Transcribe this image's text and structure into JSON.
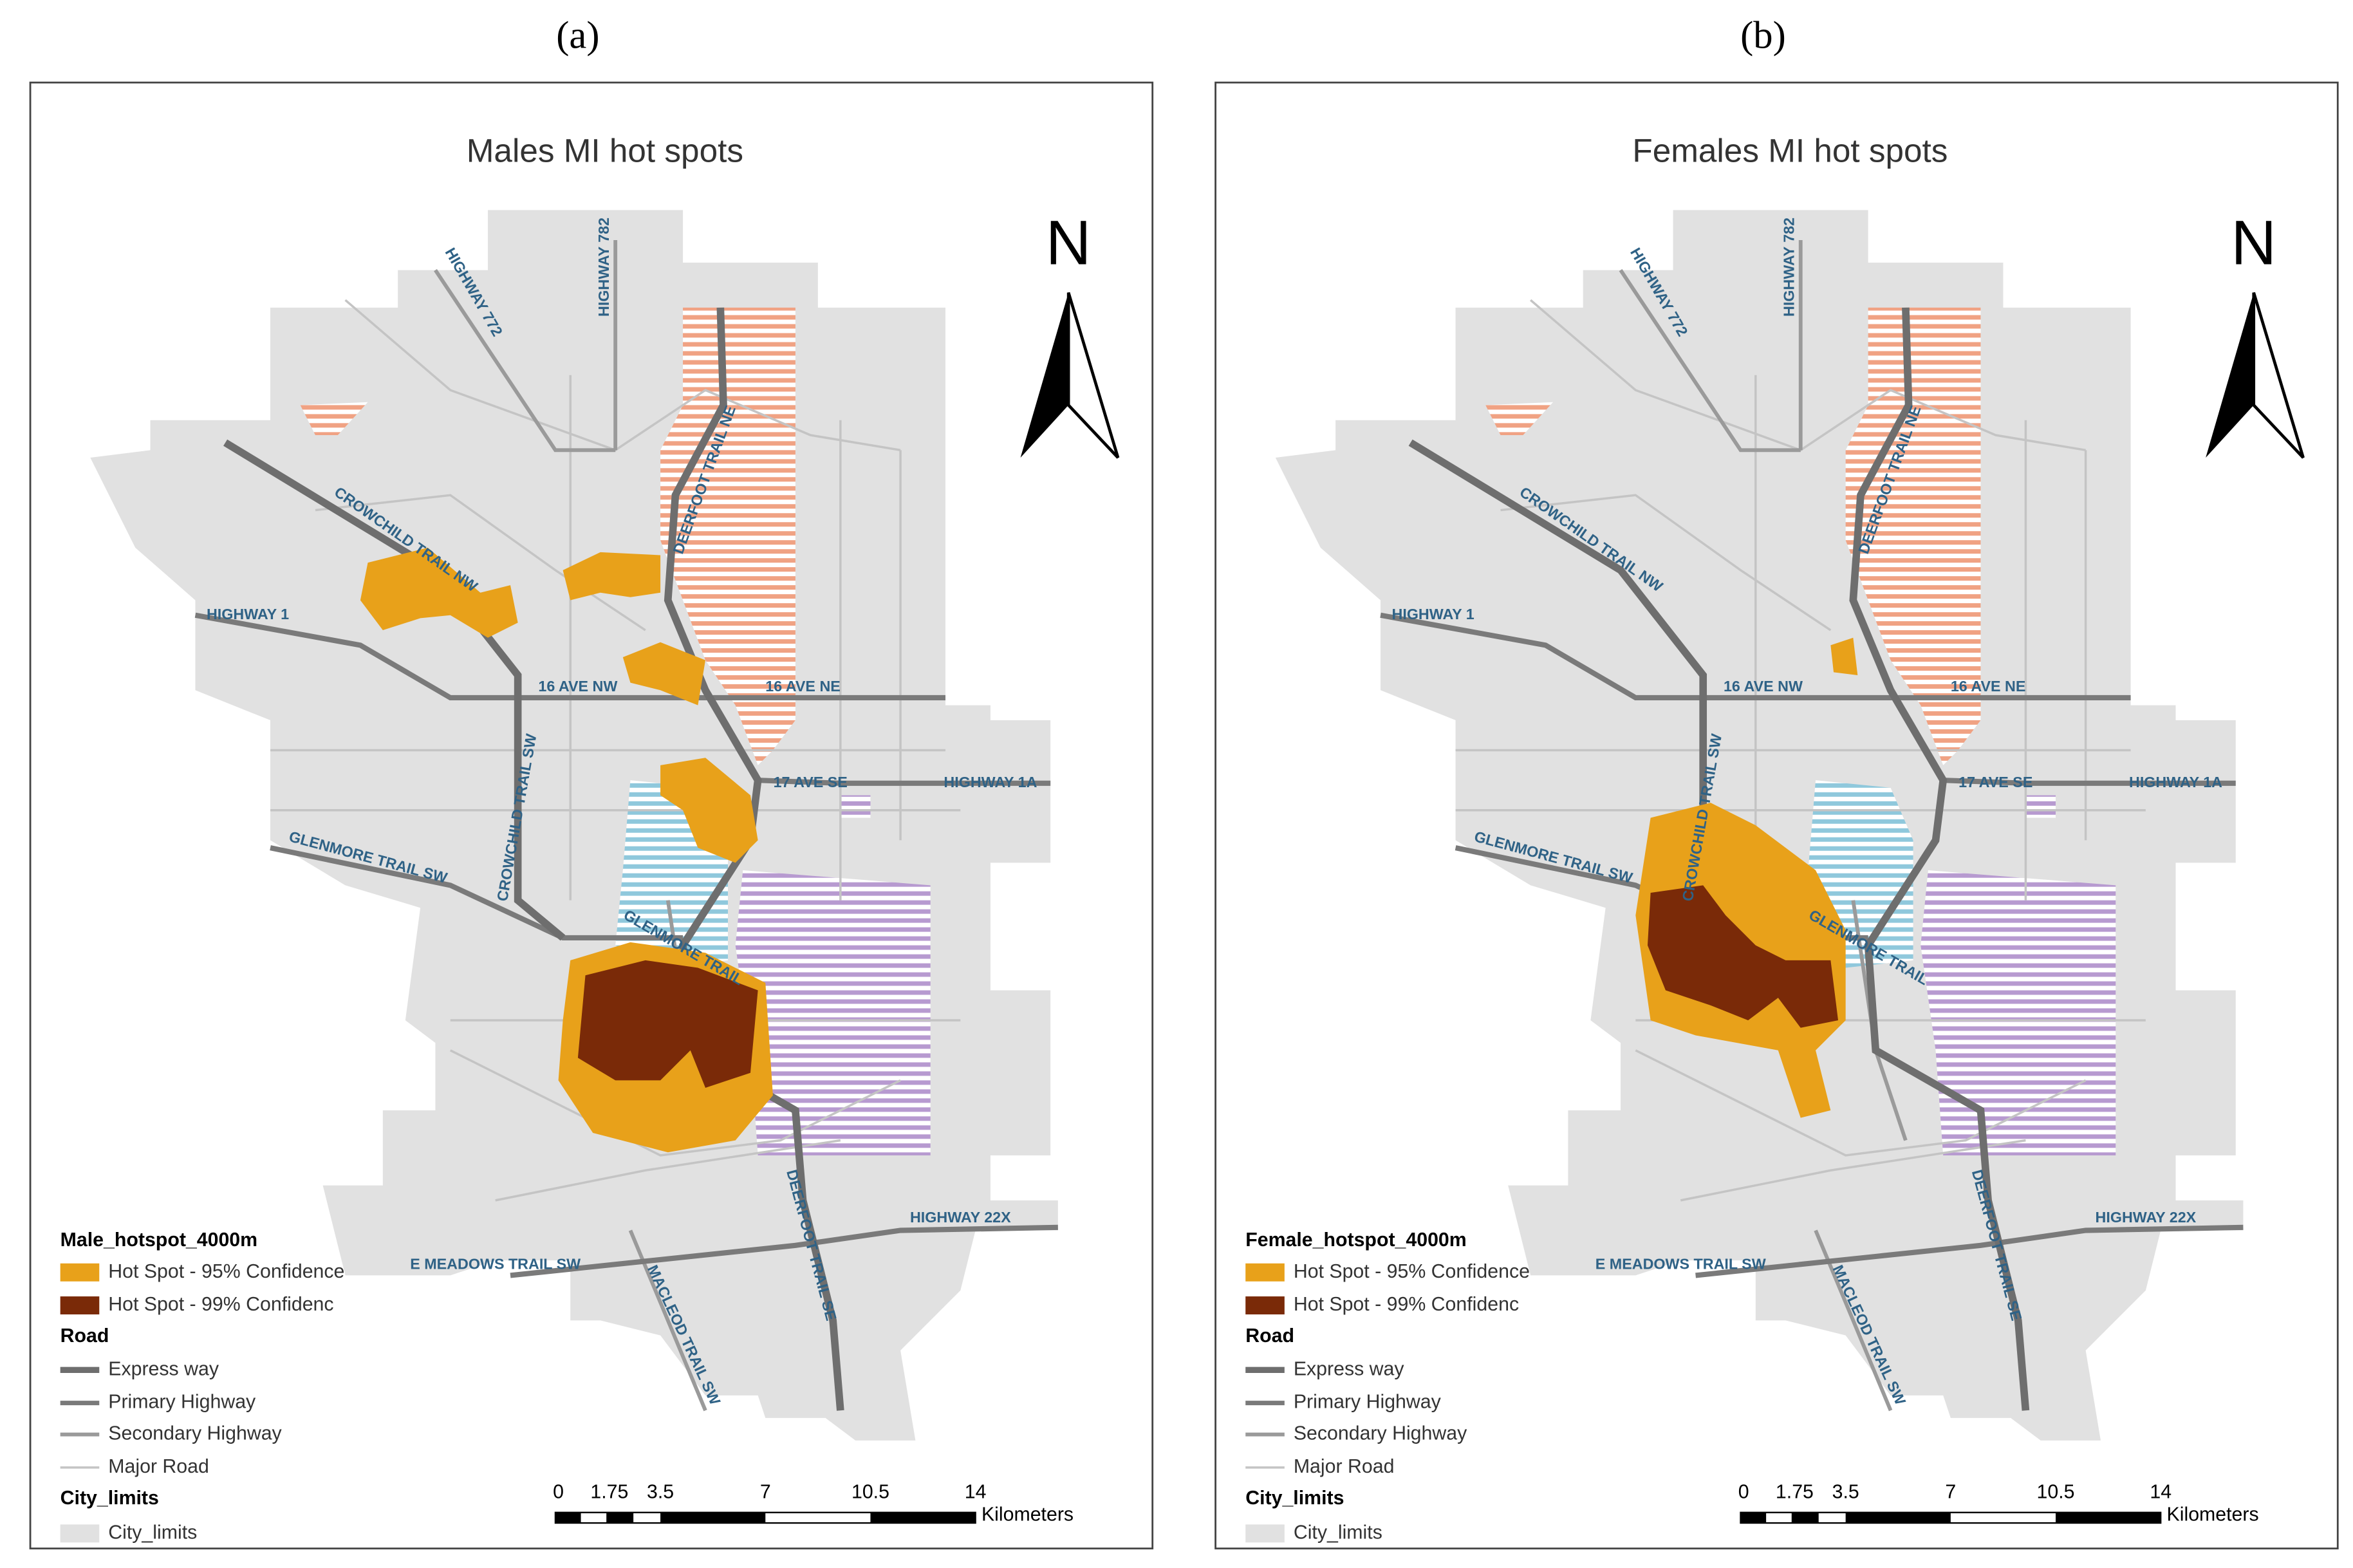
{
  "panels": [
    {
      "label": "(a)",
      "title": "Males MI hot spots",
      "north": "N",
      "road_labels": [
        "HIGHWAY 772",
        "HIGHWAY 782",
        "CROWCHILD TRAIL NW",
        "HIGHWAY 1",
        "16 AVE NW",
        "16 AVE NE",
        "DEERFOOT TRAIL NE",
        "17 AVE SE",
        "HIGHWAY 1A",
        "GLENMORE TRAIL SW",
        "CROWCHILD TRAIL SW",
        "GLENMORE TRAIL",
        "DEERFOOT TRAIL SE",
        "HIGHWAY 22X",
        "E MEADOWS TRAIL SW",
        "MACLEOD TRAIL SW"
      ],
      "legend": {
        "title": "Male_hotspot_4000m",
        "items": [
          "Hot Spot -  95% Confidence",
          "Hot Spot -  99% Confidenc"
        ],
        "road_title": "Road",
        "roads": [
          "Express way",
          "Primary Highway",
          "Secondary Highway",
          "Major Road"
        ],
        "city_title": "City_limits",
        "city_item": "City_limits"
      },
      "scale": {
        "ticks": [
          "0",
          "1.75",
          "3.5",
          "7",
          "10.5",
          "14"
        ],
        "unit": "Kilometers"
      }
    },
    {
      "label": "(b)",
      "title": "Females MI hot spots",
      "north": "N",
      "road_labels": [
        "HIGHWAY 772",
        "HIGHWAY 782",
        "CROWCHILD TRAIL NW",
        "HIGHWAY 1",
        "16 AVE NW",
        "16 AVE NE",
        "DEERFOOT TRAIL NE",
        "17 AVE SE",
        "HIGHWAY 1A",
        "GLENMORE TRAIL SW",
        "CROWCHILD TRAIL SW",
        "GLENMORE TRAIL",
        "DEERFOOT TRAIL SE",
        "HIGHWAY 22X",
        "E MEADOWS TRAIL SW",
        "MACLEOD TRAIL SW"
      ],
      "legend": {
        "title": "Female_hotspot_4000m",
        "items": [
          "Hot Spot -  95% Confidence",
          "Hot Spot -  99% Confidenc"
        ],
        "road_title": "Road",
        "roads": [
          "Express way",
          "Primary Highway",
          "Secondary Highway",
          "Major Road"
        ],
        "city_title": "City_limits",
        "city_item": "City_limits"
      },
      "scale": {
        "ticks": [
          "0",
          "1.75",
          "3.5",
          "7",
          "10.5",
          "14"
        ],
        "unit": "Kilometers"
      }
    }
  ]
}
